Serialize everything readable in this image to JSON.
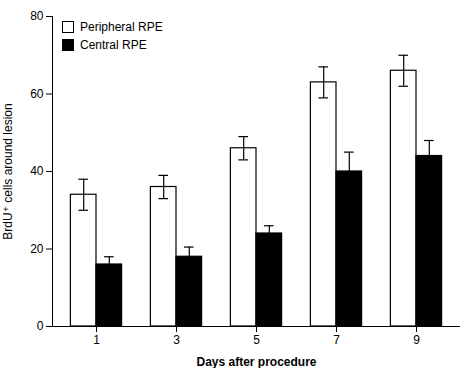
{
  "chart_data": {
    "type": "bar",
    "xlabel": "Days after procedure",
    "ylabel": "BrdU⁺ cells around lesion",
    "categories": [
      1,
      3,
      5,
      7,
      9
    ],
    "series": [
      {
        "name": "Peripheral RPE",
        "color": "#ffffff",
        "values": [
          34,
          36,
          46,
          63,
          66
        ],
        "errors": [
          4,
          3,
          3,
          4,
          4
        ]
      },
      {
        "name": "Central RPE",
        "color": "#000000",
        "values": [
          16,
          18,
          24,
          40,
          44
        ],
        "errors": [
          2,
          2.5,
          2,
          5,
          4
        ]
      }
    ],
    "ylim": [
      0,
      80
    ],
    "yticks": [
      0,
      20,
      40,
      60,
      80
    ],
    "legend": "upper left",
    "grid": false
  }
}
